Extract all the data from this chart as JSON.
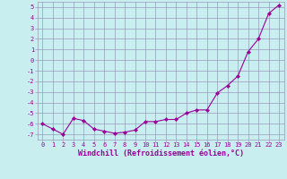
{
  "x": [
    0,
    1,
    2,
    3,
    4,
    5,
    6,
    7,
    8,
    9,
    10,
    11,
    12,
    13,
    14,
    15,
    16,
    17,
    18,
    19,
    20,
    21,
    22,
    23
  ],
  "y": [
    -6.0,
    -6.5,
    -7.0,
    -5.5,
    -5.7,
    -6.5,
    -6.7,
    -6.9,
    -6.8,
    -6.6,
    -5.8,
    -5.8,
    -5.6,
    -5.6,
    -5.0,
    -4.7,
    -4.7,
    -3.1,
    -2.4,
    -1.5,
    0.8,
    2.0,
    4.4,
    5.2
  ],
  "xlabel": "Windchill (Refroidissement éolien,°C)",
  "line_color": "#990099",
  "marker": "D",
  "marker_size": 2.2,
  "bg_color": "#c8eef0",
  "grid_color": "#9999bb",
  "xlim": [
    -0.5,
    23.5
  ],
  "ylim": [
    -7.5,
    5.5
  ],
  "yticks": [
    5,
    4,
    3,
    2,
    1,
    0,
    -1,
    -2,
    -3,
    -4,
    -5,
    -6,
    -7
  ],
  "xticks": [
    0,
    1,
    2,
    3,
    4,
    5,
    6,
    7,
    8,
    9,
    10,
    11,
    12,
    13,
    14,
    15,
    16,
    17,
    18,
    19,
    20,
    21,
    22,
    23
  ],
  "tick_fontsize": 5.0,
  "label_fontsize": 6.0
}
